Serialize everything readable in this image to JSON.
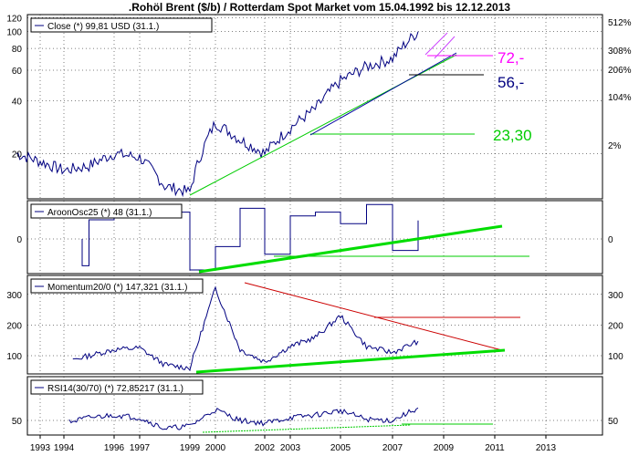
{
  "title": ".Rohöl Brent ($/b) / Rotterdam Spot Market vom 15.04.1992 bis 12.12.2013",
  "x_axis": {
    "ticks": [
      "1993",
      "1994",
      "1996",
      "1997",
      "1999",
      "2000",
      "2002",
      "2003",
      "2005",
      "2007",
      "2009",
      "2011",
      "2013"
    ]
  },
  "chart_data": [
    {
      "type": "line",
      "legend": "Close (*) 99,81 USD (31.1.)",
      "left_ticks": [
        "120",
        "100",
        "80",
        "60",
        "40",
        "20"
      ],
      "right_ticks": [
        "512%",
        "308%",
        "206%",
        "104%",
        "2%"
      ],
      "annotations": [
        "72,-",
        "56,-",
        "23,30"
      ],
      "x": [
        "1992",
        "1993",
        "1994",
        "1995",
        "1996",
        "1997",
        "1998",
        "1999",
        "2000",
        "2001",
        "2002",
        "2003",
        "2004",
        "2005",
        "2006",
        "2007",
        "2008"
      ],
      "values": [
        20,
        18,
        16,
        17,
        20,
        19,
        13,
        12,
        30,
        24,
        20,
        28,
        36,
        52,
        63,
        70,
        99.81
      ],
      "log_scale": true,
      "colors": {
        "price": "#000080",
        "support": "#00cc00",
        "trend": "#0000a0",
        "target_upper": "#ff00ff",
        "price_line": "#cc44ff"
      }
    },
    {
      "type": "line",
      "legend": "AroonOsc25 (*) 48 (31.1.)",
      "left_ticks": [
        "0"
      ],
      "right_ticks": [
        "0"
      ],
      "x": [
        "1992",
        "1993",
        "1994",
        "1995",
        "1996",
        "1997",
        "1998",
        "1999",
        "2000",
        "2001",
        "2002",
        "2003",
        "2004",
        "2005",
        "2006",
        "2007",
        "2008"
      ],
      "values": [
        0,
        0,
        -70,
        50,
        80,
        60,
        70,
        -90,
        -20,
        80,
        -40,
        60,
        70,
        40,
        90,
        -30,
        48
      ]
    },
    {
      "type": "line",
      "legend": "Momentum20/0 (*) 147,321 (31.1.)",
      "left_ticks": [
        "300",
        "200",
        "100"
      ],
      "right_ticks": [
        "300",
        "200",
        "100"
      ],
      "x": [
        "1992",
        "1993",
        "1994",
        "1995",
        "1996",
        "1997",
        "1998",
        "1999",
        "2000",
        "2001",
        "2002",
        "2003",
        "2004",
        "2005",
        "2006",
        "2007",
        "2008"
      ],
      "values": [
        100,
        90,
        80,
        100,
        120,
        125,
        70,
        60,
        320,
        120,
        80,
        130,
        160,
        230,
        130,
        110,
        147.321
      ],
      "colors": {
        "resistance": "#cc0000",
        "support": "#00dd00"
      }
    },
    {
      "type": "line",
      "legend": "RSI14(30/70) (*) 72,85217 (31.1.)",
      "left_ticks": [
        "50"
      ],
      "right_ticks": [
        "50"
      ],
      "x": [
        "1992",
        "1993",
        "1994",
        "1995",
        "1996",
        "1997",
        "1998",
        "1999",
        "2000",
        "2001",
        "2002",
        "2003",
        "2004",
        "2005",
        "2006",
        "2007",
        "2008"
      ],
      "values": [
        50,
        48,
        45,
        55,
        60,
        55,
        35,
        40,
        70,
        50,
        45,
        55,
        60,
        68,
        52,
        50,
        72.85217
      ]
    }
  ]
}
